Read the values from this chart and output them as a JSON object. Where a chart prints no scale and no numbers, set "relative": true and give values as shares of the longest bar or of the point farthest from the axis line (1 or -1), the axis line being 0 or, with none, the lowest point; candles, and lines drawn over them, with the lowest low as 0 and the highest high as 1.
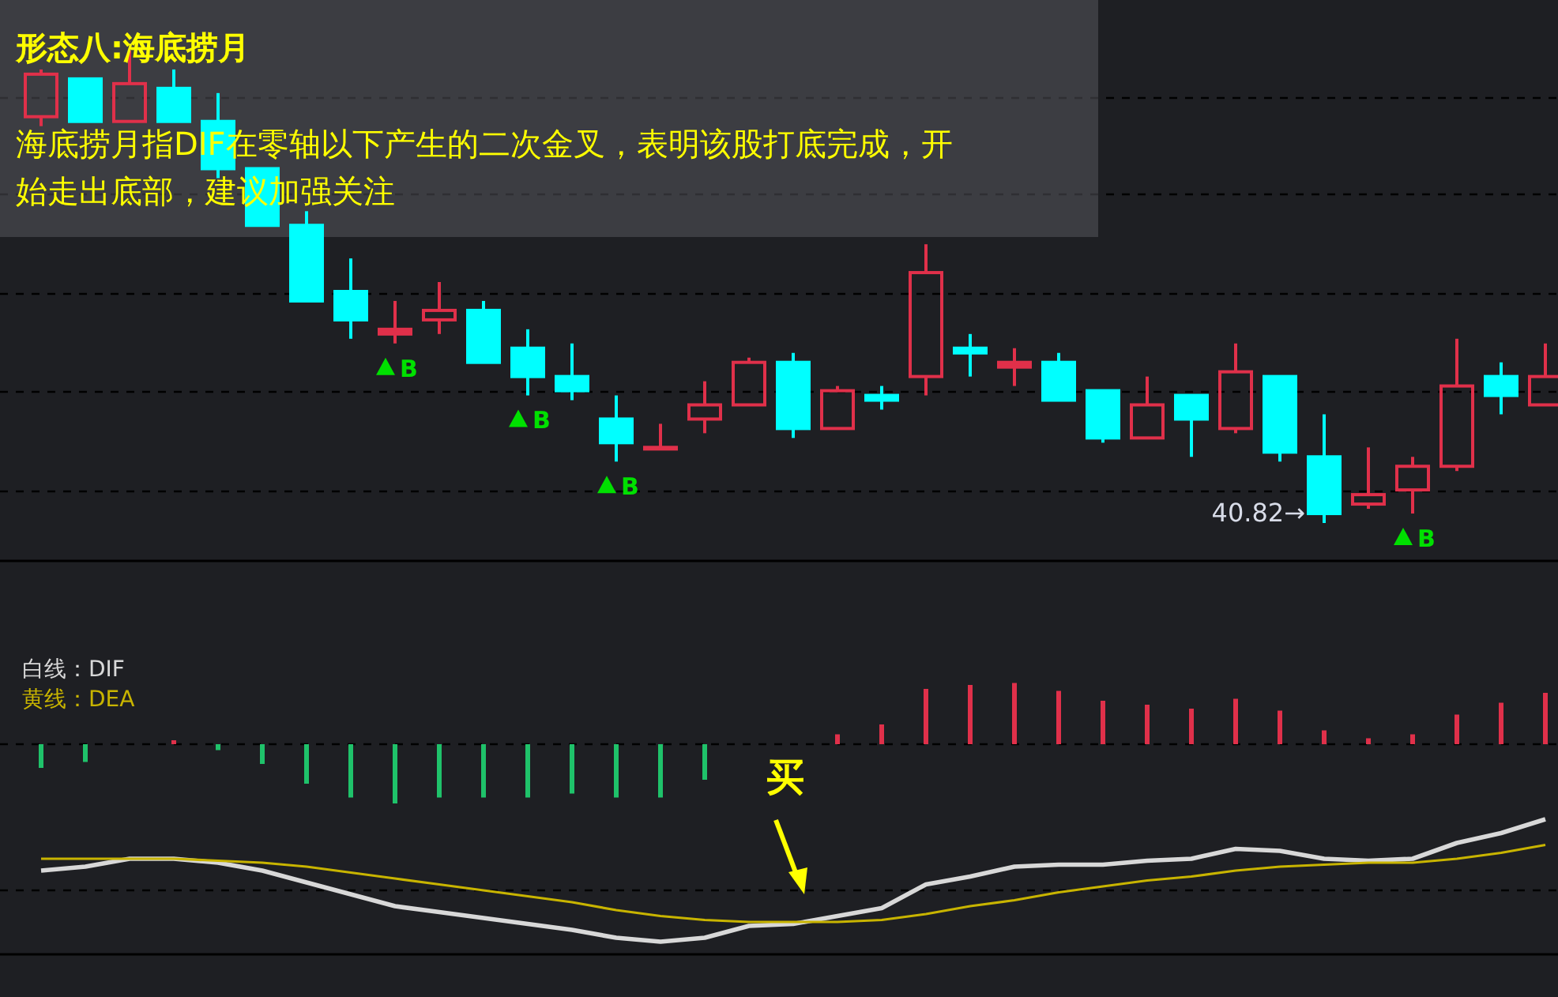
{
  "chart_data": [
    {
      "type": "candlestick",
      "title": "形态八:海底捞月",
      "subtitle": "海底捞月指DIF在零轴以下产生的二次金叉，表明该股打底完成，开始走出底部，建议加强关注",
      "relative": true,
      "grid": "y",
      "categories": [
        null,
        null,
        null,
        null,
        null,
        null,
        null,
        null,
        null,
        null,
        null,
        null,
        null,
        null,
        null,
        null,
        null,
        null,
        null,
        null,
        null,
        null,
        null,
        null,
        null,
        null,
        null,
        null,
        null,
        null,
        null,
        null,
        null,
        null,
        null
      ],
      "ohlc": [
        [
          0.86,
          0.96,
          0.84,
          0.95
        ],
        [
          0.94,
          0.94,
          0.85,
          0.85
        ],
        [
          0.85,
          1,
          0.85,
          0.93
        ],
        [
          0.92,
          0.96,
          0.85,
          0.85
        ],
        [
          0.85,
          0.91,
          0.73,
          0.75
        ],
        [
          0.75,
          0.75,
          0.63,
          0.63
        ],
        [
          0.63,
          0.66,
          0.47,
          0.47
        ],
        [
          0.49,
          0.56,
          0.39,
          0.43
        ],
        [
          0.4,
          0.47,
          0.38,
          0.41
        ],
        [
          0.43,
          0.51,
          0.4,
          0.45
        ],
        [
          0.45,
          0.47,
          0.34,
          0.34
        ],
        [
          0.37,
          0.41,
          0.27,
          0.31
        ],
        [
          0.31,
          0.38,
          0.26,
          0.28
        ],
        [
          0.22,
          0.27,
          0.13,
          0.17
        ],
        [
          0.16,
          0.21,
          0.16,
          0.16
        ],
        [
          0.22,
          0.3,
          0.19,
          0.25
        ],
        [
          0.25,
          0.35,
          0.25,
          0.34
        ],
        [
          0.34,
          0.36,
          0.18,
          0.2
        ],
        [
          0.2,
          0.29,
          0.2,
          0.28
        ],
        [
          0.27,
          0.29,
          0.24,
          0.26
        ],
        [
          0.31,
          0.59,
          0.27,
          0.53
        ],
        [
          0.37,
          0.4,
          0.31,
          0.36
        ],
        [
          0.33,
          0.37,
          0.29,
          0.34
        ],
        [
          0.34,
          0.36,
          0.26,
          0.26
        ],
        [
          0.28,
          0.28,
          0.17,
          0.18
        ],
        [
          0.18,
          0.31,
          0.18,
          0.25
        ],
        [
          0.27,
          0.27,
          0.14,
          0.22
        ],
        [
          0.2,
          0.38,
          0.19,
          0.32
        ],
        [
          0.31,
          0.31,
          0.13,
          0.15
        ],
        [
          0.14,
          0.23,
          0,
          0.02
        ],
        [
          0.04,
          0.16,
          0.03,
          0.06
        ],
        [
          0.07,
          0.14,
          0.02,
          0.12
        ],
        [
          0.12,
          0.39,
          0.11,
          0.29
        ],
        [
          0.31,
          0.34,
          0.23,
          0.27
        ],
        [
          0.25,
          0.38,
          0.25,
          0.31
        ]
      ],
      "colors": [
        "#e0304a",
        "#00ffff",
        "#e0304a",
        "#00ffff",
        "#00ffff",
        "#00ffff",
        "#00ffff",
        "#00ffff",
        "#e0304a",
        "#e0304a",
        "#00ffff",
        "#00ffff",
        "#00ffff",
        "#00ffff",
        "#e0304a",
        "#e0304a",
        "#e0304a",
        "#00ffff",
        "#e0304a",
        "#00ffff",
        "#e0304a",
        "#00ffff",
        "#e0304a",
        "#00ffff",
        "#00ffff",
        "#e0304a",
        "#00ffff",
        "#e0304a",
        "#00ffff",
        "#00ffff",
        "#e0304a",
        "#e0304a",
        "#e0304a",
        "#00ffff",
        "#e0304a"
      ],
      "series": [
        {
          "type": "scatter",
          "name": "B",
          "color": "#00e000",
          "marker": "triangle",
          "values": [
            null,
            null,
            null,
            null,
            null,
            null,
            null,
            null,
            0.33,
            null,
            null,
            0.22,
            null,
            0.08,
            null,
            null,
            null,
            null,
            null,
            null,
            null,
            null,
            null,
            null,
            null,
            null,
            null,
            null,
            null,
            null,
            null,
            -0.03,
            null,
            null,
            null
          ]
        }
      ],
      "annotations": [
        "40.82→"
      ]
    },
    {
      "type": "bar",
      "relative": true,
      "legend": "top left",
      "ref_lines": [
        {
          "axis": "y",
          "value": 0,
          "color": "#000000",
          "line_style": "dashed"
        },
        {
          "axis": "y",
          "value": -0.74,
          "color": "#000000",
          "line_style": "dashed"
        }
      ],
      "categories": [
        null,
        null,
        null,
        null,
        null,
        null,
        null,
        null,
        null,
        null,
        null,
        null,
        null,
        null,
        null,
        null,
        null,
        null,
        null,
        null,
        null,
        null,
        null,
        null,
        null,
        null,
        null,
        null,
        null,
        null,
        null,
        null,
        null,
        null,
        null
      ],
      "series": [
        {
          "type": "bar",
          "values": [
            -0.12,
            -0.09,
            0,
            0.02,
            -0.03,
            -0.1,
            -0.2,
            -0.27,
            -0.3,
            -0.27,
            -0.27,
            -0.27,
            -0.25,
            -0.27,
            -0.27,
            -0.18,
            0,
            0,
            0.05,
            0.1,
            0.28,
            0.3,
            0.31,
            0.27,
            0.22,
            0.2,
            0.18,
            0.23,
            0.17,
            0.07,
            0.03,
            0.05,
            0.15,
            0.21,
            0.26
          ],
          "colors": [
            "#1fc26a",
            "#1fc26a",
            "#1fc26a",
            "#e0304a",
            "#1fc26a",
            "#1fc26a",
            "#1fc26a",
            "#1fc26a",
            "#1fc26a",
            "#1fc26a",
            "#1fc26a",
            "#1fc26a",
            "#1fc26a",
            "#1fc26a",
            "#1fc26a",
            "#1fc26a",
            "#1fc26a",
            "#e0304a",
            "#e0304a",
            "#e0304a",
            "#e0304a",
            "#e0304a",
            "#e0304a",
            "#e0304a",
            "#e0304a",
            "#e0304a",
            "#e0304a",
            "#e0304a",
            "#e0304a",
            "#e0304a",
            "#e0304a",
            "#e0304a",
            "#e0304a",
            "#e0304a",
            "#e0304a"
          ]
        },
        {
          "type": "line",
          "name": "白线：DIF",
          "color": "#d8d8d8",
          "values": [
            -0.64,
            -0.62,
            -0.58,
            -0.58,
            -0.6,
            -0.64,
            -0.7,
            -0.76,
            -0.82,
            -0.85,
            -0.88,
            -0.91,
            -0.94,
            -0.98,
            -1,
            -0.98,
            -0.92,
            -0.91,
            -0.87,
            -0.83,
            -0.71,
            -0.67,
            -0.62,
            -0.61,
            -0.61,
            -0.59,
            -0.58,
            -0.53,
            -0.54,
            -0.58,
            -0.59,
            -0.58,
            -0.5,
            -0.45,
            -0.38
          ]
        },
        {
          "type": "line",
          "name": "黄线：DEA",
          "color": "#c8b400",
          "values": [
            -0.58,
            -0.58,
            -0.58,
            -0.58,
            -0.59,
            -0.6,
            -0.62,
            -0.65,
            -0.68,
            -0.71,
            -0.74,
            -0.77,
            -0.8,
            -0.84,
            -0.87,
            -0.89,
            -0.9,
            -0.9,
            -0.9,
            -0.89,
            -0.86,
            -0.82,
            -0.79,
            -0.75,
            -0.72,
            -0.69,
            -0.67,
            -0.64,
            -0.62,
            -0.61,
            -0.6,
            -0.6,
            -0.58,
            -0.55,
            -0.51
          ]
        }
      ],
      "annotations": [
        "买"
      ]
    }
  ]
}
